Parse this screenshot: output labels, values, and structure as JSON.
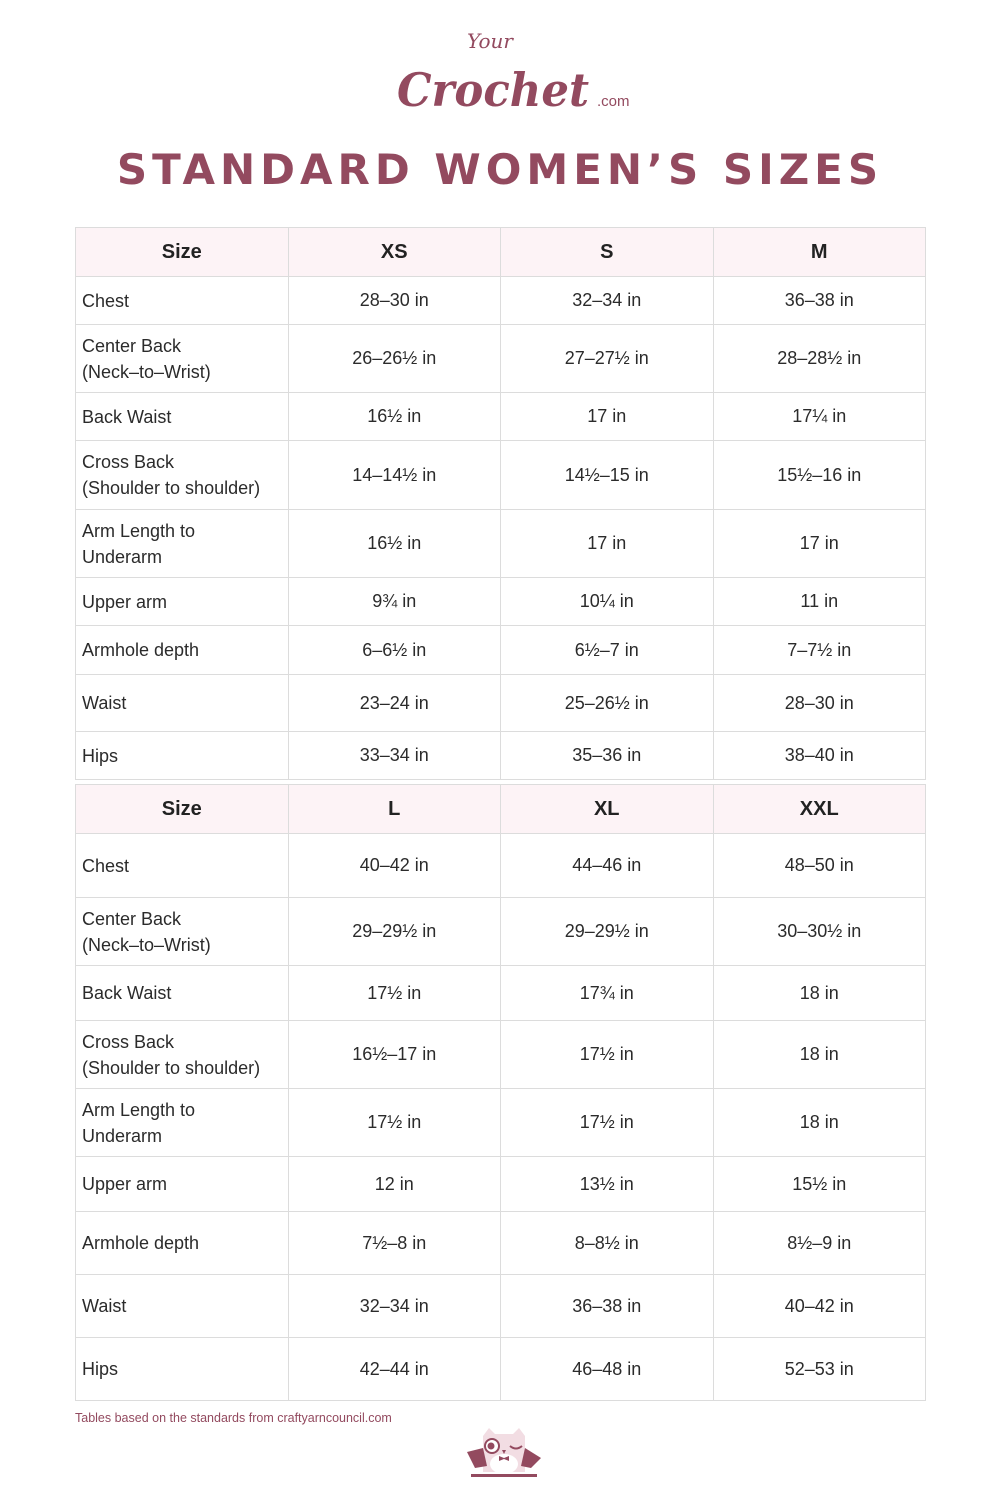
{
  "brand": {
    "logo_text_top": "Your",
    "logo_text_main": "Crochet",
    "logo_text_suffix": ".com",
    "color": "#934a5f",
    "header_bg": "#fdf3f6"
  },
  "title": "STANDARD WOMEN’S SIZES",
  "tables": [
    {
      "headers": [
        "Size",
        "XS",
        "S",
        "M"
      ],
      "rows": [
        {
          "label": [
            "Chest"
          ],
          "values": [
            "28–30 in",
            "32–34 in",
            "36–38 in"
          ]
        },
        {
          "label": [
            "Center Back",
            "(Neck–to–Wrist)"
          ],
          "values": [
            "26–26½ in",
            "27–27½ in",
            "28–28½ in"
          ]
        },
        {
          "label": [
            "Back Waist"
          ],
          "values": [
            "16½ in",
            "17 in",
            "17¼ in"
          ]
        },
        {
          "label": [
            "Cross Back",
            "(Shoulder to shoulder)"
          ],
          "values": [
            "14–14½ in",
            "14½–15 in",
            "15½–16 in"
          ]
        },
        {
          "label": [
            "Arm Length to",
            "Underarm"
          ],
          "values": [
            "16½ in",
            "17 in",
            "17 in"
          ]
        },
        {
          "label": [
            "Upper arm"
          ],
          "values": [
            "9¾ in",
            "10¼ in",
            "11 in"
          ]
        },
        {
          "label": [
            "Armhole depth"
          ],
          "values": [
            "6–6½ in",
            "6½–7 in",
            "7–7½ in"
          ]
        },
        {
          "label": [
            "Waist"
          ],
          "values": [
            "23–24 in",
            "25–26½ in",
            "28–30 in"
          ]
        },
        {
          "label": [
            "Hips"
          ],
          "values": [
            "33–34 in",
            "35–36 in",
            "38–40 in"
          ]
        }
      ]
    },
    {
      "headers": [
        "Size",
        "L",
        "XL",
        "XXL"
      ],
      "rows": [
        {
          "label": [
            "Chest"
          ],
          "values": [
            "40–42 in",
            "44–46 in",
            "48–50 in"
          ]
        },
        {
          "label": [
            "Center Back",
            "(Neck–to–Wrist)"
          ],
          "values": [
            "29–29½ in",
            "29–29½ in",
            "30–30½ in"
          ]
        },
        {
          "label": [
            "Back Waist"
          ],
          "values": [
            "17½ in",
            "17¾ in",
            "18 in"
          ]
        },
        {
          "label": [
            "Cross Back",
            "(Shoulder to shoulder)"
          ],
          "values": [
            "16½–17 in",
            "17½ in",
            "18 in"
          ]
        },
        {
          "label": [
            "Arm Length to",
            "Underarm"
          ],
          "values": [
            "17½ in",
            "17½ in",
            "18 in"
          ]
        },
        {
          "label": [
            "Upper arm"
          ],
          "values": [
            "12 in",
            "13½ in",
            "15½ in"
          ]
        },
        {
          "label": [
            "Armhole depth"
          ],
          "values": [
            "7½–8 in",
            "8–8½ in",
            "8½–9 in"
          ]
        },
        {
          "label": [
            "Waist"
          ],
          "values": [
            "32–34 in",
            "36–38 in",
            "40–42 in"
          ]
        },
        {
          "label": [
            "Hips"
          ],
          "values": [
            "42–44 in",
            "46–48 in",
            "52–53 in"
          ]
        }
      ]
    }
  ],
  "footnote": "Tables based on the standards from craftyarncouncil.com",
  "mascot_icon": "owl-mascot-icon"
}
